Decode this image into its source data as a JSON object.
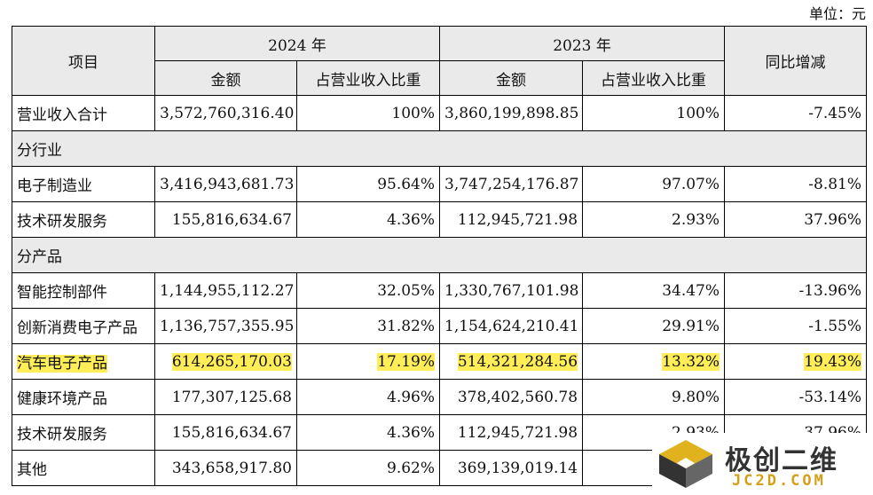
{
  "unit_label": "单位：元",
  "header": {
    "item": "项目",
    "year_2024": "2024 年",
    "year_2023": "2023 年",
    "yoy": "同比增减",
    "amount": "金额",
    "share": "占营业收入比重"
  },
  "total": {
    "label": "营业收入合计",
    "amount_2024": "3,572,760,316.40",
    "share_2024": "100%",
    "amount_2023": "3,860,199,898.85",
    "share_2023": "100%",
    "yoy": "-7.45%"
  },
  "section_industry": "分行业",
  "industry_rows": [
    {
      "label": "电子制造业",
      "amount_2024": "3,416,943,681.73",
      "share_2024": "95.64%",
      "amount_2023": "3,747,254,176.87",
      "share_2023": "97.07%",
      "yoy": "-8.81%"
    },
    {
      "label": "技术研发服务",
      "amount_2024": "155,816,634.67",
      "share_2024": "4.36%",
      "amount_2023": "112,945,721.98",
      "share_2023": "2.93%",
      "yoy": "37.96%"
    }
  ],
  "section_product": "分产品",
  "product_rows": [
    {
      "label": "智能控制部件",
      "amount_2024": "1,144,955,112.27",
      "share_2024": "32.05%",
      "amount_2023": "1,330,767,101.98",
      "share_2023": "34.47%",
      "yoy": "-13.96%",
      "highlight": false
    },
    {
      "label": "创新消费电子产品",
      "amount_2024": "1,136,757,355.95",
      "share_2024": "31.82%",
      "amount_2023": "1,154,624,210.41",
      "share_2023": "29.91%",
      "yoy": "-1.55%",
      "highlight": false
    },
    {
      "label": "汽车电子产品",
      "amount_2024": "614,265,170.03",
      "share_2024": "17.19%",
      "amount_2023": "514,321,284.56",
      "share_2023": "13.32%",
      "yoy": "19.43%",
      "highlight": true
    },
    {
      "label": "健康环境产品",
      "amount_2024": "177,307,125.68",
      "share_2024": "4.96%",
      "amount_2023": "378,402,560.78",
      "share_2023": "9.80%",
      "yoy": "-53.14%",
      "highlight": false
    },
    {
      "label": "技术研发服务",
      "amount_2024": "155,816,634.67",
      "share_2024": "4.36%",
      "amount_2023": "112,945,721.98",
      "share_2023": "2.93%",
      "yoy": "37.96%",
      "highlight": false
    },
    {
      "label": "其他",
      "amount_2024": "343,658,917.80",
      "share_2024": "9.62%",
      "amount_2023": "369,139,019.14",
      "share_2023": "",
      "yoy": "",
      "highlight": false
    }
  ],
  "highlight_color": "#ffee58",
  "watermark": {
    "brand": "极创二维",
    "url": "JC2D.COM",
    "icon": "cube-logo-icon"
  }
}
